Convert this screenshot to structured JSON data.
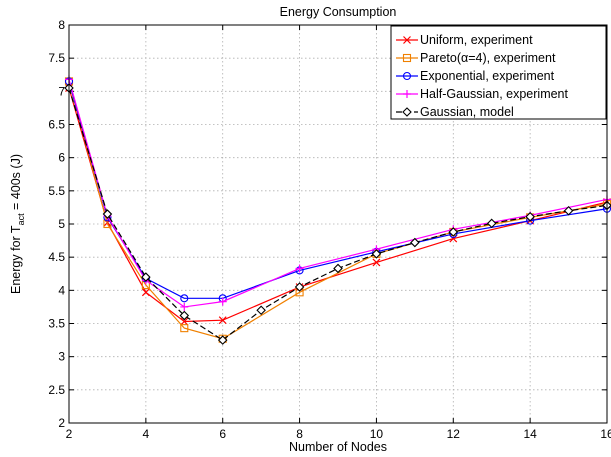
{
  "chart_data": {
    "type": "line",
    "title": "Energy Consumption",
    "xlabel": "Number of Nodes",
    "ylabel": {
      "prefix": "Energy for T",
      "subscript": "act",
      "suffix": " = 400s (J)"
    },
    "xlim": [
      2,
      16
    ],
    "ylim": [
      2,
      8
    ],
    "xticks": [
      2,
      4,
      6,
      8,
      10,
      12,
      14,
      16
    ],
    "yticks": [
      2,
      2.5,
      3,
      3.5,
      4,
      4.5,
      5,
      5.5,
      6,
      6.5,
      7,
      7.5,
      8
    ],
    "grid": true,
    "legend_position": "top-right",
    "series": [
      {
        "name": "Uniform, experiment",
        "color": "#ff0000",
        "marker": "x",
        "dash": "solid",
        "x": [
          2,
          3,
          4,
          5,
          6,
          8,
          10,
          12,
          14,
          16
        ],
        "y": [
          7.05,
          5.02,
          3.97,
          3.53,
          3.55,
          4.05,
          4.42,
          4.78,
          5.05,
          5.33
        ]
      },
      {
        "name": "Pareto(α=4), experiment",
        "color": "#f08000",
        "marker": "square",
        "dash": "solid",
        "x": [
          2,
          3,
          4,
          5,
          6,
          8,
          10,
          12,
          14,
          16
        ],
        "y": [
          7.15,
          5.0,
          4.08,
          3.43,
          3.27,
          3.97,
          4.55,
          4.88,
          5.1,
          5.3
        ]
      },
      {
        "name": "Exponential, experiment",
        "color": "#0000ff",
        "marker": "circle",
        "dash": "solid",
        "x": [
          2,
          3,
          4,
          5,
          6,
          8,
          10,
          12,
          14,
          16
        ],
        "y": [
          7.15,
          5.1,
          4.18,
          3.88,
          3.88,
          4.3,
          4.58,
          4.85,
          5.05,
          5.23
        ]
      },
      {
        "name": "Half-Gaussian, experiment",
        "color": "#ff00ff",
        "marker": "plus",
        "dash": "solid",
        "x": [
          2,
          3,
          4,
          5,
          6,
          8,
          10,
          12,
          14,
          16
        ],
        "y": [
          7.18,
          5.12,
          4.15,
          3.75,
          3.83,
          4.33,
          4.62,
          4.92,
          5.13,
          5.37
        ]
      },
      {
        "name": "Gaussian, model",
        "color": "#000000",
        "marker": "diamond",
        "dash": "dashed",
        "x": [
          2,
          3,
          4,
          5,
          6,
          7,
          8,
          9,
          10,
          11,
          12,
          13,
          14,
          15,
          16
        ],
        "y": [
          7.05,
          5.15,
          4.2,
          3.62,
          3.25,
          3.7,
          4.05,
          4.33,
          4.55,
          4.72,
          4.88,
          5.01,
          5.11,
          5.2,
          5.28
        ]
      }
    ]
  }
}
